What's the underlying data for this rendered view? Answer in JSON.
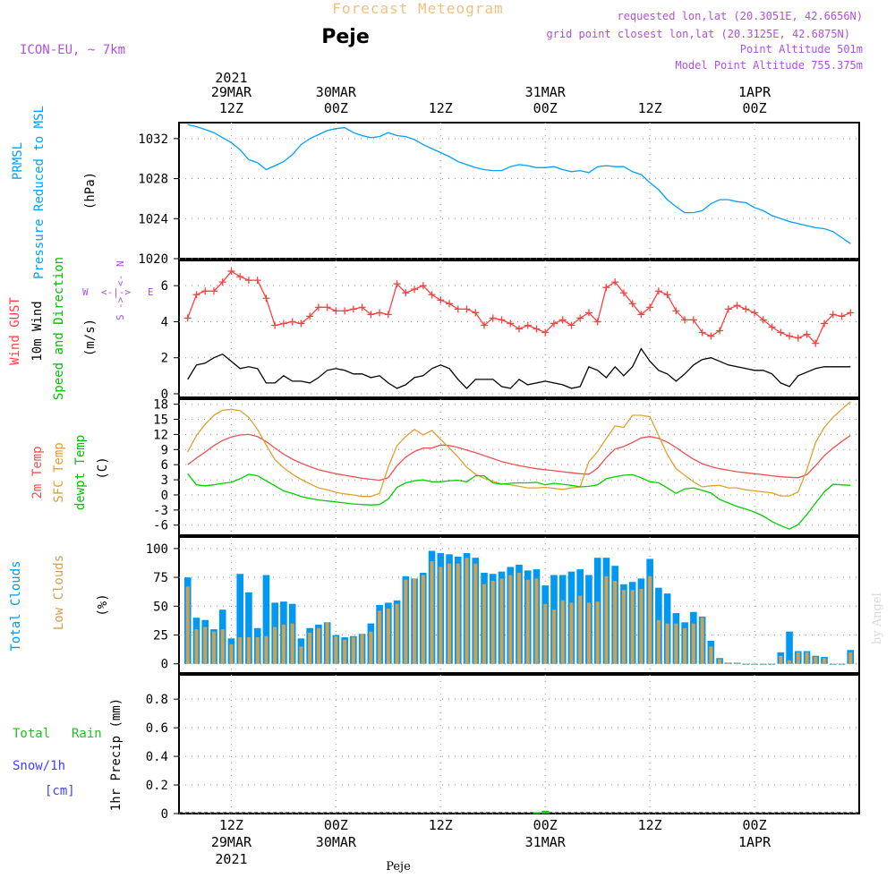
{
  "header": {
    "title": "Forecast Meteogram",
    "location": "Peje",
    "model": "ICON-EU, ~ 7km",
    "requested": "requested lon,lat (20.3051E, 42.6656N)",
    "grid_point": "grid point closest lon,lat (20.3125E, 42.6875N)",
    "point_altitude": "Point Altitude 501m",
    "model_altitude": "Model Point Altitude 755.375m",
    "credit": "by Angel",
    "footer_location": "Peje"
  },
  "colors": {
    "pressure": "#00a0ff",
    "gust": "#ff4040",
    "wind": "#000000",
    "temp2m": "#f05050",
    "sfc_temp": "#e0a030",
    "dewpoint": "#00d000",
    "total_clouds": "#0098f0",
    "low_clouds": "#d0a050",
    "rain": "#20c020",
    "snow": "#4040ff",
    "header_purple": "#b050e0",
    "title_orange": "#f0c080"
  },
  "time_axis": {
    "top_year": "2021",
    "top_labels": [
      {
        "line1": "29MAR",
        "line2": "12Z",
        "hour": 12
      },
      {
        "line1": "30MAR",
        "line2": "00Z",
        "hour": 24
      },
      {
        "line1": "",
        "line2": "12Z",
        "hour": 36
      },
      {
        "line1": "31MAR",
        "line2": "00Z",
        "hour": 48
      },
      {
        "line1": "",
        "line2": "12Z",
        "hour": 60
      },
      {
        "line1": "1APR",
        "line2": "00Z",
        "hour": 72
      }
    ],
    "bottom_labels": [
      {
        "line1": "12Z",
        "line2": "29MAR",
        "line3": "2021",
        "hour": 12
      },
      {
        "line1": "00Z",
        "line2": "30MAR",
        "line3": "",
        "hour": 24
      },
      {
        "line1": "12Z",
        "line2": "",
        "line3": "",
        "hour": 36
      },
      {
        "line1": "00Z",
        "line2": "31MAR",
        "line3": "",
        "hour": 48
      },
      {
        "line1": "12Z",
        "line2": "",
        "line3": "",
        "hour": 60
      },
      {
        "line1": "00Z",
        "line2": "1APR",
        "line3": "",
        "hour": 72
      }
    ]
  },
  "chart_data": [
    {
      "type": "line",
      "panel": "pressure",
      "labels": [
        "PRMSL",
        "Pressure Reduced to MSL"
      ],
      "unit": "(hPa)",
      "ylim": [
        1020,
        1033.6
      ],
      "yticks": [
        1020,
        1024,
        1028,
        1032
      ],
      "x": [
        7,
        8,
        9,
        10,
        11,
        12,
        13,
        14,
        15,
        16,
        17,
        18,
        19,
        20,
        21,
        22,
        23,
        24,
        25,
        26,
        27,
        28,
        29,
        30,
        31,
        32,
        33,
        34,
        35,
        36,
        37,
        38,
        39,
        40,
        41,
        42,
        43,
        44,
        45,
        46,
        47,
        48,
        49,
        50,
        51,
        52,
        53,
        54,
        55,
        56,
        57,
        58,
        59,
        60,
        61,
        62,
        63,
        64,
        65,
        66,
        67,
        68,
        69,
        70,
        71,
        72,
        73,
        74,
        75,
        76,
        77,
        78,
        79,
        80,
        81,
        82,
        83
      ],
      "series": [
        {
          "name": "PRMSL",
          "values": [
            1033.4,
            1033.2,
            1032.9,
            1032.6,
            1032.1,
            1031.6,
            1030.9,
            1029.9,
            1029.6,
            1028.9,
            1029.3,
            1029.7,
            1030.4,
            1031.4,
            1032.0,
            1032.4,
            1032.8,
            1033.0,
            1033.1,
            1032.6,
            1032.3,
            1032.1,
            1032.2,
            1032.6,
            1032.3,
            1032.2,
            1031.9,
            1031.4,
            1031.0,
            1030.6,
            1030.2,
            1029.7,
            1029.4,
            1029.1,
            1028.9,
            1028.8,
            1028.8,
            1029.2,
            1029.4,
            1029.3,
            1029.1,
            1029.1,
            1029.2,
            1028.9,
            1028.7,
            1028.8,
            1028.6,
            1029.2,
            1029.3,
            1029.2,
            1029.2,
            1028.7,
            1028.4,
            1027.6,
            1026.9,
            1025.9,
            1025.2,
            1024.6,
            1024.6,
            1024.8,
            1025.5,
            1025.9,
            1025.9,
            1025.7,
            1025.6,
            1025.1,
            1024.8,
            1024.3,
            1024.0,
            1023.7,
            1023.5,
            1023.3,
            1023.1,
            1023.0,
            1022.7,
            1022.1,
            1021.5
          ]
        }
      ]
    },
    {
      "type": "line",
      "panel": "wind",
      "labels": [
        "Wind GUST",
        "10m Wind",
        "Speed and Direction"
      ],
      "unit": "(m/s)",
      "compass": {
        "n": "N",
        "s": "S",
        "w": "W",
        "e": "E"
      },
      "ylim": [
        -0.2,
        7.4
      ],
      "yticks": [
        0,
        2,
        4,
        6
      ],
      "x": [
        7,
        8,
        9,
        10,
        11,
        12,
        13,
        14,
        15,
        16,
        17,
        18,
        19,
        20,
        21,
        22,
        23,
        24,
        25,
        26,
        27,
        28,
        29,
        30,
        31,
        32,
        33,
        34,
        35,
        36,
        37,
        38,
        39,
        40,
        41,
        42,
        43,
        44,
        45,
        46,
        47,
        48,
        49,
        50,
        51,
        52,
        53,
        54,
        55,
        56,
        57,
        58,
        59,
        60,
        61,
        62,
        63,
        64,
        65,
        66,
        67,
        68,
        69,
        70,
        71,
        72,
        73,
        74,
        75,
        76,
        77,
        78,
        79,
        80,
        81,
        82,
        83
      ],
      "series": [
        {
          "name": "Wind GUST",
          "values": [
            4.2,
            5.5,
            5.7,
            5.7,
            6.2,
            6.8,
            6.5,
            6.3,
            6.3,
            5.3,
            3.8,
            3.9,
            4.0,
            3.9,
            4.3,
            4.8,
            4.8,
            4.6,
            4.6,
            4.7,
            4.8,
            4.4,
            4.5,
            4.4,
            6.1,
            5.6,
            5.8,
            6.0,
            5.5,
            5.2,
            5.0,
            4.7,
            4.7,
            4.5,
            3.8,
            4.2,
            4.1,
            3.9,
            3.6,
            3.8,
            3.6,
            3.4,
            3.9,
            4.1,
            3.8,
            4.2,
            4.5,
            4.0,
            5.9,
            6.2,
            5.6,
            5.0,
            4.4,
            4.8,
            5.7,
            5.5,
            4.6,
            4.1,
            4.1,
            3.4,
            3.2,
            3.5,
            4.7,
            4.9,
            4.7,
            4.5,
            4.1,
            3.7,
            3.4,
            3.2,
            3.1,
            3.3,
            2.8,
            3.9,
            4.4,
            4.3,
            4.5
          ]
        },
        {
          "name": "10m Wind",
          "values": [
            0.8,
            1.6,
            1.7,
            2.0,
            2.2,
            1.8,
            1.4,
            1.5,
            1.4,
            0.6,
            0.6,
            1.0,
            0.7,
            0.7,
            0.6,
            0.9,
            1.3,
            1.4,
            1.3,
            1.1,
            1.1,
            0.9,
            1.0,
            0.6,
            0.3,
            0.5,
            0.9,
            1.0,
            1.4,
            1.6,
            1.4,
            0.8,
            0.3,
            0.8,
            0.8,
            0.8,
            0.4,
            0.3,
            0.8,
            0.5,
            0.6,
            0.7,
            0.6,
            0.5,
            0.3,
            0.4,
            1.5,
            1.3,
            0.9,
            1.5,
            1.0,
            1.5,
            2.5,
            1.8,
            1.3,
            1.1,
            0.7,
            1.1,
            1.6,
            1.9,
            2.0,
            1.8,
            1.6,
            1.5,
            1.4,
            1.3,
            1.3,
            1.1,
            0.6,
            0.4,
            1.0,
            1.2,
            1.4,
            1.5,
            1.5,
            1.5,
            1.5
          ]
        }
      ]
    },
    {
      "type": "line",
      "panel": "temperature",
      "labels": [
        "2m Temp",
        "SFC Temp",
        "dewpt Temp"
      ],
      "unit": "(C)",
      "ylim": [
        -8,
        19
      ],
      "yticks": [
        -6,
        -3,
        0,
        3,
        6,
        9,
        12,
        15,
        18
      ],
      "x": [
        7,
        8,
        9,
        10,
        11,
        12,
        13,
        14,
        15,
        16,
        17,
        18,
        19,
        20,
        21,
        22,
        23,
        24,
        25,
        26,
        27,
        28,
        29,
        30,
        31,
        32,
        33,
        34,
        35,
        36,
        37,
        38,
        39,
        40,
        41,
        42,
        43,
        44,
        45,
        46,
        47,
        48,
        49,
        50,
        51,
        52,
        53,
        54,
        55,
        56,
        57,
        58,
        59,
        60,
        61,
        62,
        63,
        64,
        65,
        66,
        67,
        68,
        69,
        70,
        71,
        72,
        73,
        74,
        75,
        76,
        77,
        78,
        79,
        80,
        81,
        82,
        83
      ],
      "series": [
        {
          "name": "2m Temp",
          "values": [
            6.0,
            7.3,
            8.5,
            9.8,
            10.8,
            11.5,
            11.9,
            12.0,
            11.6,
            10.6,
            9.3,
            8.1,
            7.1,
            6.3,
            5.6,
            5.0,
            4.6,
            4.2,
            3.9,
            3.6,
            3.3,
            3.1,
            2.9,
            3.4,
            5.8,
            7.5,
            8.6,
            9.3,
            9.3,
            9.9,
            9.8,
            9.4,
            8.9,
            8.4,
            7.8,
            7.2,
            6.6,
            6.2,
            5.8,
            5.5,
            5.2,
            5.0,
            4.8,
            4.6,
            4.4,
            4.2,
            4.1,
            5.3,
            7.4,
            9.1,
            9.6,
            10.4,
            11.3,
            11.6,
            11.2,
            10.5,
            9.4,
            8.2,
            7.1,
            6.2,
            5.6,
            5.2,
            4.9,
            4.6,
            4.4,
            4.2,
            4.0,
            3.8,
            3.6,
            3.5,
            3.4,
            4.0,
            5.8,
            7.8,
            9.3,
            10.6,
            11.8
          ]
        },
        {
          "name": "SFC Temp",
          "values": [
            8.5,
            11.8,
            14.0,
            15.8,
            16.8,
            17.0,
            16.7,
            15.4,
            13.0,
            9.9,
            7.0,
            5.4,
            4.1,
            3.1,
            2.2,
            1.4,
            1.0,
            0.5,
            0.2,
            0.0,
            -0.3,
            -0.3,
            0.3,
            5.5,
            9.8,
            11.6,
            13.0,
            11.9,
            12.8,
            11.0,
            9.3,
            7.5,
            5.5,
            4.1,
            3.3,
            2.7,
            2.2,
            2.0,
            1.7,
            1.4,
            1.4,
            1.5,
            1.3,
            1.1,
            1.4,
            1.6,
            6.6,
            8.6,
            11.2,
            13.7,
            13.4,
            15.8,
            15.8,
            15.5,
            11.8,
            8.0,
            5.2,
            3.9,
            2.6,
            1.6,
            1.8,
            1.9,
            1.4,
            1.4,
            1.0,
            0.8,
            0.6,
            0.4,
            -0.2,
            -0.2,
            0.6,
            5.0,
            10.4,
            13.4,
            15.4,
            17.0,
            18.5
          ]
        },
        {
          "name": "dewpt Temp",
          "values": [
            4.2,
            2.0,
            1.8,
            2.0,
            2.3,
            2.5,
            3.2,
            4.1,
            3.8,
            2.8,
            1.8,
            0.8,
            0.3,
            -0.3,
            -0.7,
            -1.0,
            -1.2,
            -1.4,
            -1.6,
            -1.8,
            -1.9,
            -2.0,
            -1.9,
            -0.8,
            1.5,
            2.4,
            2.8,
            3.0,
            2.6,
            2.6,
            2.8,
            2.9,
            2.6,
            3.8,
            3.8,
            2.4,
            2.1,
            2.3,
            2.4,
            2.4,
            2.5,
            2.0,
            2.3,
            2.1,
            1.9,
            1.6,
            1.7,
            2.0,
            3.2,
            3.6,
            3.9,
            4.0,
            3.4,
            2.6,
            2.4,
            1.4,
            0.3,
            1.2,
            1.4,
            0.9,
            0.4,
            -0.9,
            -1.6,
            -2.3,
            -2.8,
            -3.4,
            -4.2,
            -5.3,
            -6.1,
            -6.8,
            -5.9,
            -3.9,
            -1.6,
            0.6,
            2.1,
            2.0,
            1.9
          ]
        }
      ]
    },
    {
      "type": "bar",
      "panel": "clouds",
      "labels": [
        "Total Clouds",
        "Low Clouds"
      ],
      "unit": "(%)",
      "ylim": [
        -8,
        110
      ],
      "yticks": [
        0,
        25,
        50,
        75,
        100
      ],
      "x": [
        7,
        8,
        9,
        10,
        11,
        12,
        13,
        14,
        15,
        16,
        17,
        18,
        19,
        20,
        21,
        22,
        23,
        24,
        25,
        26,
        27,
        28,
        29,
        30,
        31,
        32,
        33,
        34,
        35,
        36,
        37,
        38,
        39,
        40,
        41,
        42,
        43,
        44,
        45,
        46,
        47,
        48,
        49,
        50,
        51,
        52,
        53,
        54,
        55,
        56,
        57,
        58,
        59,
        60,
        61,
        62,
        63,
        64,
        65,
        66,
        67,
        68,
        69,
        70,
        71,
        72,
        73,
        74,
        75,
        76,
        77,
        78,
        79,
        80,
        81,
        82,
        83
      ],
      "series": [
        {
          "name": "Total Clouds",
          "values": [
            75,
            40,
            38,
            30,
            47,
            22,
            78,
            62,
            31,
            77,
            53,
            54,
            52,
            22,
            31,
            34,
            36,
            25,
            23,
            24,
            26,
            35,
            51,
            53,
            55,
            76,
            74,
            79,
            98,
            96,
            95,
            93,
            96,
            92,
            79,
            78,
            80,
            84,
            86,
            81,
            82,
            68,
            77,
            77,
            80,
            82,
            77,
            92,
            92,
            85,
            69,
            71,
            74,
            91,
            66,
            61,
            44,
            36,
            45,
            41,
            20,
            5,
            1,
            1,
            0,
            0,
            0,
            0,
            10,
            28,
            11,
            11,
            7,
            6,
            0,
            0,
            12
          ]
        },
        {
          "name": "Low Clouds",
          "values": [
            67,
            30,
            32,
            28,
            30,
            17,
            23,
            23,
            23,
            24,
            32,
            34,
            35,
            15,
            27,
            31,
            36,
            24,
            21,
            23,
            26,
            28,
            46,
            48,
            52,
            73,
            74,
            77,
            89,
            84,
            87,
            87,
            92,
            87,
            69,
            72,
            74,
            77,
            79,
            73,
            74,
            52,
            47,
            55,
            53,
            59,
            53,
            54,
            76,
            72,
            64,
            64,
            65,
            76,
            38,
            35,
            35,
            31,
            35,
            40,
            15,
            4,
            1,
            1,
            0,
            0,
            0,
            0,
            7,
            3,
            10,
            10,
            6,
            5,
            0,
            0,
            10
          ]
        }
      ]
    },
    {
      "type": "bar",
      "panel": "precipitation",
      "labels": [
        "Total",
        "Rain",
        "Snow/1h",
        "[cm]"
      ],
      "ylabel": "1hr Precip (mm)",
      "ylim": [
        0,
        0.97
      ],
      "yticks": [
        0,
        0.2,
        0.4,
        0.6,
        0.8
      ],
      "x": [
        47,
        48
      ],
      "series": [
        {
          "name": "Total Rain",
          "values": [
            0.01,
            0.02
          ]
        }
      ]
    }
  ]
}
